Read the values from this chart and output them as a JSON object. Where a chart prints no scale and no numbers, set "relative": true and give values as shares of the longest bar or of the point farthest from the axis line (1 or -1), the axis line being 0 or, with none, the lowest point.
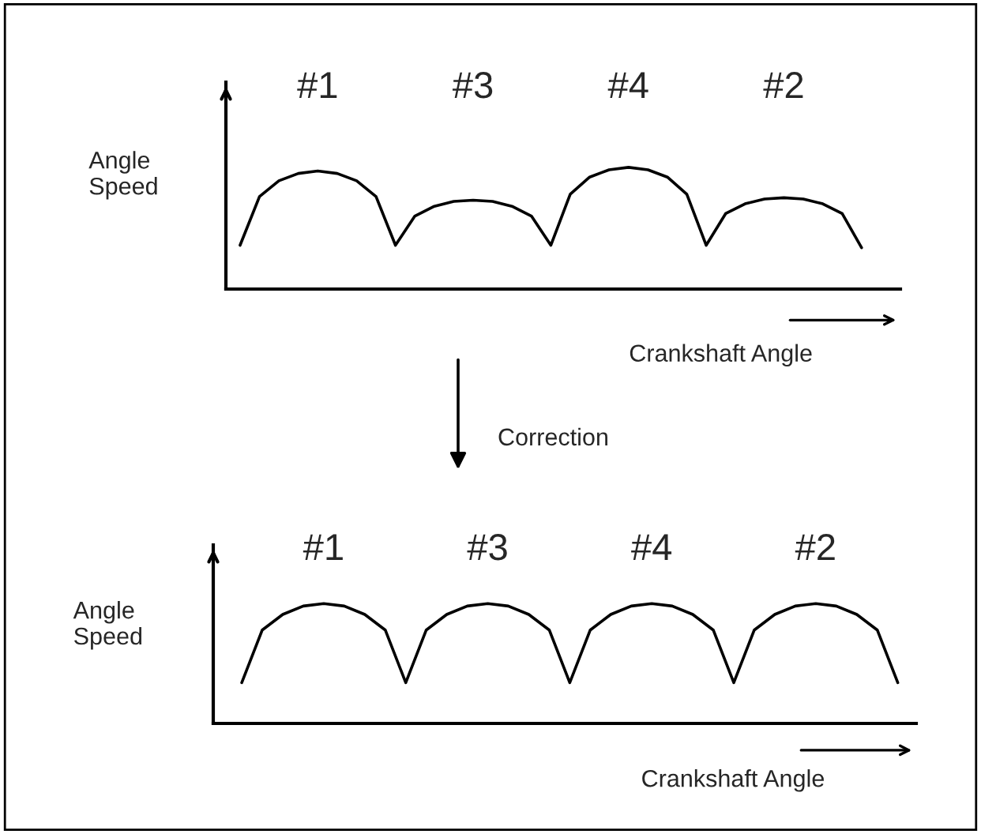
{
  "chart_data": [
    {
      "type": "line",
      "relative": true,
      "color": "#000000",
      "ylabel": "Angle\nSpeed",
      "xlabel": "Crankshaft Angle",
      "categories": [
        null,
        null,
        null,
        null,
        null,
        null,
        null,
        null,
        null,
        null,
        null,
        null,
        null,
        null,
        null,
        null,
        null,
        null,
        null,
        null,
        null,
        null,
        null,
        null,
        null,
        null,
        null,
        null,
        null,
        null,
        null,
        null,
        null
      ],
      "values": [
        0.36,
        0.76,
        0.89,
        0.95,
        0.97,
        0.95,
        0.89,
        0.76,
        0.36,
        0.6,
        0.68,
        0.72,
        0.73,
        0.72,
        0.68,
        0.6,
        0.36,
        0.78,
        0.92,
        0.98,
        1.0,
        0.98,
        0.92,
        0.78,
        0.36,
        0.62,
        0.7,
        0.74,
        0.75,
        0.74,
        0.7,
        0.62,
        0.34
      ],
      "annotations": [
        "#1",
        "#3",
        "#4",
        "#2",
        "Correction"
      ]
    },
    {
      "type": "line",
      "relative": true,
      "color": "#000000",
      "ylabel": "Angle\nSpeed",
      "xlabel": "Crankshaft Angle",
      "categories": [
        null,
        null,
        null,
        null,
        null,
        null,
        null,
        null,
        null,
        null,
        null,
        null,
        null,
        null,
        null,
        null,
        null,
        null,
        null,
        null,
        null,
        null,
        null,
        null,
        null,
        null,
        null,
        null,
        null,
        null,
        null,
        null,
        null
      ],
      "values": [
        0.34,
        0.78,
        0.91,
        0.98,
        1.0,
        0.98,
        0.91,
        0.78,
        0.34,
        0.78,
        0.91,
        0.98,
        1.0,
        0.98,
        0.91,
        0.78,
        0.34,
        0.78,
        0.91,
        0.98,
        1.0,
        0.98,
        0.91,
        0.78,
        0.34,
        0.78,
        0.91,
        0.98,
        1.0,
        0.98,
        0.91,
        0.78,
        0.34
      ],
      "annotations": [
        "#1",
        "#3",
        "#4",
        "#2"
      ]
    }
  ]
}
